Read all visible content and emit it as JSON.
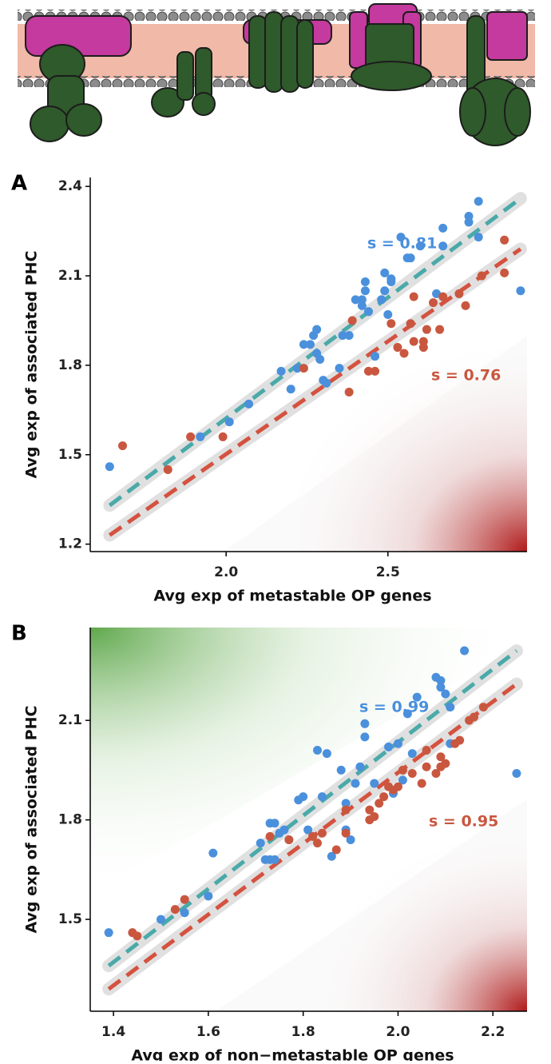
{
  "chart_data": [
    {
      "type": "scatter",
      "panel": "A",
      "xlabel": "Avg exp of metastable OP genes",
      "ylabel": "Avg exp of associated PHC",
      "xlim": [
        1.58,
        2.93
      ],
      "ylim": [
        1.175,
        2.43
      ],
      "xticks": [
        {
          "value": 2,
          "label": "2.0"
        },
        2.5
      ],
      "yticks": [
        1.2,
        1.5,
        1.8,
        2.1,
        2.4
      ],
      "series": [
        {
          "color": "#4a90dc",
          "label": "s = 0.81",
          "fit_color": "#4aa9a9",
          "x": [
            1.64,
            1.92,
            2.01,
            2.07,
            2.17,
            2.2,
            2.22,
            2.24,
            2.26,
            2.27,
            2.28,
            2.28,
            2.29,
            2.3,
            2.31,
            2.35,
            2.36,
            2.38,
            2.4,
            2.42,
            2.42,
            2.43,
            2.43,
            2.44,
            2.46,
            2.48,
            2.49,
            2.49,
            2.5,
            2.51,
            2.51,
            2.54,
            2.56,
            2.57,
            2.6,
            2.65,
            2.67,
            2.67,
            2.75,
            2.75,
            2.78,
            2.78,
            2.91
          ],
          "y": [
            1.46,
            1.56,
            1.61,
            1.67,
            1.78,
            1.72,
            1.79,
            1.87,
            1.87,
            1.9,
            1.84,
            1.92,
            1.82,
            1.75,
            1.74,
            1.79,
            1.9,
            1.9,
            2.02,
            2.0,
            2.02,
            2.05,
            2.08,
            1.98,
            1.83,
            2.02,
            2.11,
            2.05,
            1.97,
            2.08,
            2.09,
            2.23,
            2.16,
            2.16,
            2.2,
            2.04,
            2.2,
            2.26,
            2.3,
            2.28,
            2.35,
            2.23,
            2.05
          ],
          "fit": {
            "x": [
              1.64,
              2.91
            ],
            "y": [
              1.33,
              2.36
            ]
          }
        },
        {
          "color": "#c9573f",
          "label": "s = 0.76",
          "fit_color": "#d4523f",
          "x": [
            1.68,
            1.82,
            1.89,
            1.99,
            2.24,
            2.38,
            2.39,
            2.44,
            2.46,
            2.51,
            2.53,
            2.55,
            2.57,
            2.58,
            2.61,
            2.61,
            2.62,
            2.64,
            2.66,
            2.67,
            2.72,
            2.74,
            2.79,
            2.86,
            2.86,
            2.58
          ],
          "y": [
            1.53,
            1.45,
            1.56,
            1.56,
            1.79,
            1.71,
            1.95,
            1.78,
            1.78,
            1.94,
            1.86,
            1.84,
            1.94,
            1.88,
            1.88,
            1.86,
            1.92,
            2.01,
            1.92,
            2.03,
            2.04,
            2.0,
            2.1,
            2.22,
            2.11,
            2.03
          ],
          "fit": {
            "x": [
              1.64,
              2.91
            ],
            "y": [
              1.23,
              2.19
            ]
          }
        }
      ]
    },
    {
      "type": "scatter",
      "panel": "B",
      "xlabel": "Avg exp of non−metastable OP genes",
      "ylabel": "Avg exp of associated PHC",
      "xlim": [
        1.351,
        2.272
      ],
      "ylim": [
        1.223,
        2.38
      ],
      "xticks": [
        1.4,
        1.6,
        1.8,
        {
          "value": 2,
          "label": "2.0"
        },
        2.2
      ],
      "yticks": [
        1.5,
        1.8,
        2.1
      ],
      "series": [
        {
          "color": "#4a90dc",
          "label": "s = 0.99",
          "fit_color": "#4aa9a9",
          "x": [
            1.39,
            1.5,
            1.55,
            1.6,
            1.61,
            1.71,
            1.72,
            1.73,
            1.73,
            1.74,
            1.74,
            1.75,
            1.76,
            1.77,
            1.79,
            1.8,
            1.81,
            1.83,
            1.84,
            1.85,
            1.86,
            1.88,
            1.89,
            1.89,
            1.9,
            1.91,
            1.92,
            1.93,
            1.93,
            1.95,
            1.98,
            1.99,
            2.0,
            2.01,
            2.02,
            2.03,
            2.04,
            2.08,
            2.09,
            2.09,
            2.1,
            2.11,
            2.11,
            2.14,
            2.25
          ],
          "y": [
            1.46,
            1.5,
            1.52,
            1.57,
            1.7,
            1.73,
            1.68,
            1.79,
            1.68,
            1.79,
            1.68,
            1.76,
            1.77,
            1.74,
            1.86,
            1.87,
            1.77,
            2.01,
            1.87,
            2.0,
            1.69,
            1.95,
            1.85,
            1.77,
            1.74,
            1.91,
            1.96,
            2.09,
            2.05,
            1.91,
            2.02,
            1.88,
            2.03,
            1.92,
            2.12,
            2.0,
            2.17,
            2.23,
            2.22,
            2.2,
            2.18,
            2.14,
            2.03,
            2.31,
            1.94
          ],
          "fit": {
            "x": [
              1.39,
              2.25
            ],
            "y": [
              1.36,
              2.31
            ]
          }
        },
        {
          "color": "#c9573f",
          "label": "s = 0.95",
          "fit_color": "#d4523f",
          "x": [
            1.44,
            1.45,
            1.53,
            1.55,
            1.73,
            1.77,
            1.82,
            1.83,
            1.84,
            1.87,
            1.89,
            1.89,
            1.94,
            1.94,
            1.95,
            1.96,
            1.97,
            1.98,
            1.99,
            2.0,
            2.01,
            2.03,
            2.05,
            2.06,
            2.06,
            2.08,
            2.09,
            2.09,
            2.1,
            2.12,
            2.13,
            2.15,
            2.16,
            2.18
          ],
          "y": [
            1.46,
            1.45,
            1.53,
            1.56,
            1.75,
            1.74,
            1.75,
            1.73,
            1.76,
            1.71,
            1.83,
            1.76,
            1.8,
            1.83,
            1.81,
            1.85,
            1.87,
            1.9,
            1.89,
            1.9,
            1.95,
            1.94,
            1.91,
            1.96,
            2.01,
            1.94,
            1.99,
            1.96,
            1.97,
            2.03,
            2.04,
            2.1,
            2.11,
            2.14
          ],
          "fit": {
            "x": [
              1.39,
              2.25
            ],
            "y": [
              1.29,
              2.21
            ]
          }
        }
      ]
    }
  ]
}
